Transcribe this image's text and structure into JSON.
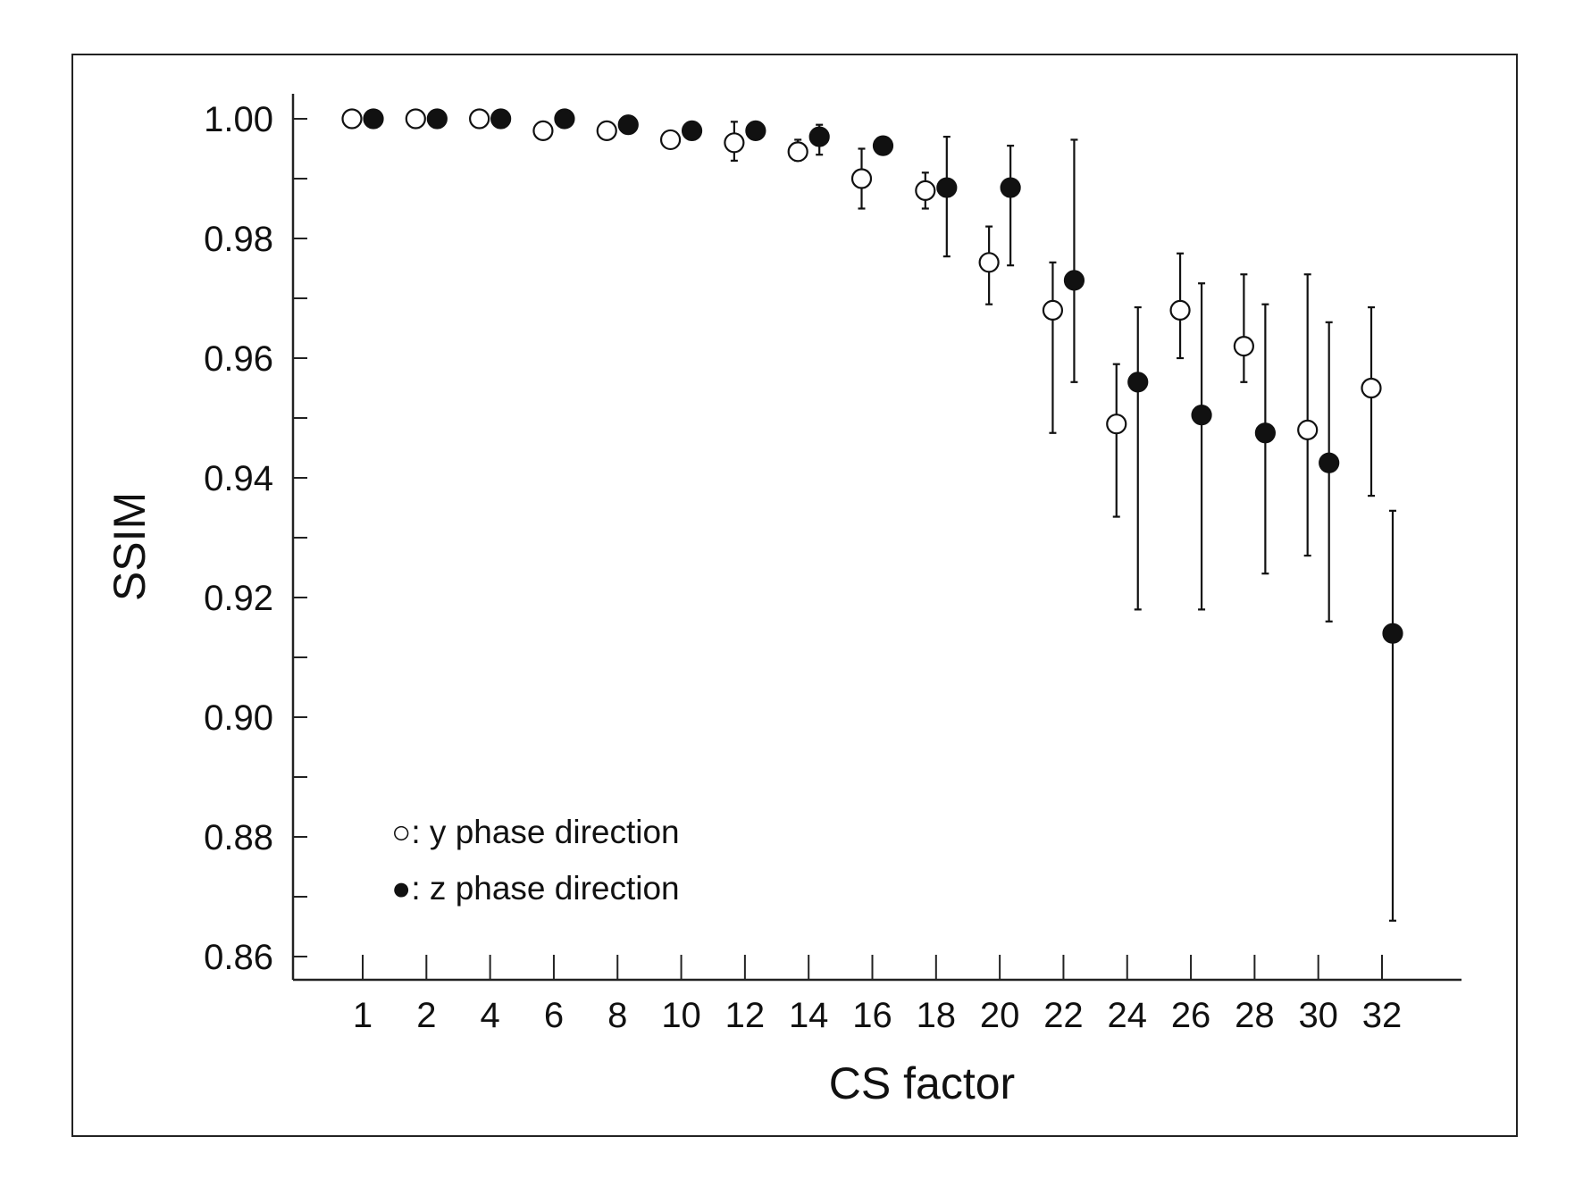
{
  "chart_data": {
    "type": "scatter",
    "title": "",
    "xlabel": "CS factor",
    "ylabel": "SSIM",
    "ylim": [
      0.86,
      1.0
    ],
    "yticks": [
      "0.86",
      "0.88",
      "0.90",
      "0.92",
      "0.94",
      "0.96",
      "0.98",
      "1.00"
    ],
    "ytick_values": [
      0.86,
      0.88,
      0.9,
      0.92,
      0.94,
      0.96,
      0.98,
      1.0
    ],
    "categories": [
      "1",
      "2",
      "4",
      "6",
      "8",
      "10",
      "12",
      "14",
      "16",
      "18",
      "20",
      "22",
      "24",
      "26",
      "28",
      "30",
      "32"
    ],
    "grid": false,
    "legend_position": "bottom-left",
    "series": [
      {
        "name": "y phase direction",
        "legend_label": "○: y phase direction",
        "marker": "open-circle",
        "values": [
          1.0,
          1.0,
          1.0,
          0.998,
          0.998,
          0.9965,
          0.996,
          0.9945,
          0.99,
          0.988,
          0.976,
          0.968,
          0.949,
          0.968,
          0.962,
          0.948,
          0.955
        ],
        "err_low": [
          null,
          null,
          null,
          null,
          null,
          null,
          0.993,
          0.993,
          0.985,
          0.985,
          0.969,
          0.9475,
          0.9335,
          0.96,
          0.956,
          0.927,
          0.937
        ],
        "err_high": [
          null,
          null,
          null,
          null,
          null,
          null,
          0.9995,
          0.9965,
          0.995,
          0.991,
          0.982,
          0.976,
          0.959,
          0.9775,
          0.974,
          0.974,
          0.9685
        ]
      },
      {
        "name": "z phase direction",
        "legend_label": "●: z phase direction",
        "marker": "filled-circle",
        "values": [
          1.0,
          1.0,
          1.0,
          1.0,
          0.999,
          0.998,
          0.998,
          0.997,
          0.9955,
          0.9885,
          0.9885,
          0.973,
          0.956,
          0.9505,
          0.9475,
          0.9425,
          0.914
        ],
        "err_low": [
          null,
          null,
          null,
          null,
          null,
          0.9965,
          null,
          0.994,
          null,
          0.977,
          0.9755,
          0.956,
          0.918,
          0.918,
          0.924,
          0.916,
          0.866
        ],
        "err_high": [
          null,
          null,
          null,
          null,
          null,
          null,
          null,
          0.999,
          null,
          0.997,
          0.9955,
          0.9965,
          0.9685,
          0.9725,
          0.969,
          0.966,
          0.9345
        ]
      }
    ]
  }
}
